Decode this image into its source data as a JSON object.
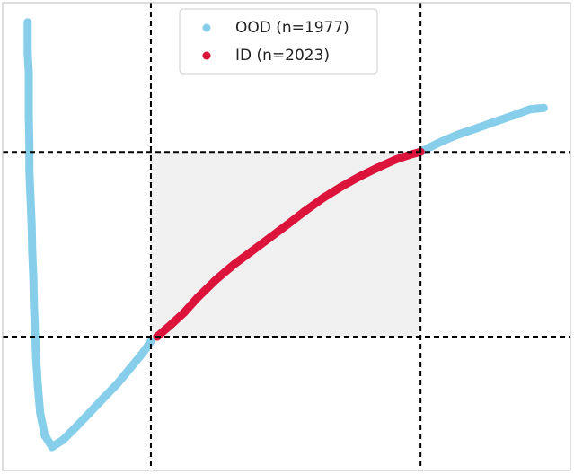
{
  "chart_data": {
    "type": "scatter",
    "xlim": [
      0,
      100
    ],
    "ylim": [
      0,
      100
    ],
    "vlines": [
      26.1,
      73.6
    ],
    "hlines": [
      28.6,
      68.1
    ],
    "shade_color": "#f0f0f0",
    "legend": "upper center",
    "series": [
      {
        "name": "OOD (n=1977)",
        "color": "#87ceeb",
        "x": [
          4.4,
          4.4,
          4.4,
          4.6,
          4.6,
          4.6,
          4.7,
          4.7,
          4.9,
          5.1,
          5.2,
          5.4,
          5.5,
          5.7,
          5.9,
          6.2,
          6.6,
          7.4,
          8.7,
          10.6,
          13.0,
          15.3,
          17.7,
          20.1,
          22.5,
          24.8,
          26.1,
          73.9,
          77.1,
          80.2,
          83.4,
          86.6,
          89.7,
          92.9,
          95.3
        ],
        "values": [
          95.8,
          92.9,
          89.1,
          85.2,
          81.4,
          75.6,
          69.9,
          64.1,
          58.3,
          52.6,
          46.8,
          41.1,
          35.3,
          29.6,
          23.8,
          18.0,
          12.3,
          7.5,
          5.0,
          6.5,
          9.4,
          12.3,
          15.4,
          18.4,
          21.9,
          25.3,
          27.6,
          68.3,
          70.2,
          71.8,
          73.1,
          74.5,
          75.8,
          77.2,
          77.5
        ]
      },
      {
        "name": "ID (n=2023)",
        "color": "#dc143c",
        "x": [
          27.2,
          29.6,
          32.0,
          34.3,
          37.5,
          40.7,
          43.8,
          47.0,
          50.2,
          53.3,
          56.5,
          59.7,
          62.8,
          66.0,
          69.1,
          71.5,
          73.6
        ],
        "values": [
          28.6,
          31.1,
          33.8,
          36.9,
          40.7,
          44.0,
          46.8,
          49.7,
          52.6,
          55.5,
          58.3,
          60.7,
          62.8,
          64.7,
          66.4,
          67.4,
          68.1
        ]
      }
    ]
  }
}
